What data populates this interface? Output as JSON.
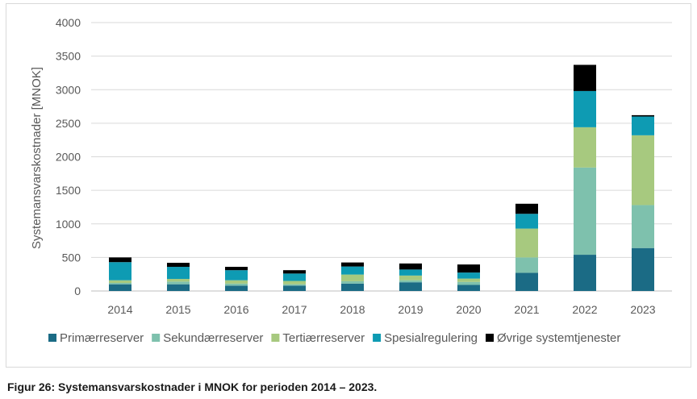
{
  "caption": "Figur 26: Systemansvarskostnader i MNOK for perioden 2014 – 2023.",
  "chart_data": {
    "type": "bar",
    "stacked": true,
    "categories": [
      "2014",
      "2015",
      "2016",
      "2017",
      "2018",
      "2019",
      "2020",
      "2021",
      "2022",
      "2023"
    ],
    "ylabel": "Systemansvarskostnader [MNOK]",
    "xlabel": "",
    "ylim": [
      0,
      4000
    ],
    "yticks": [
      0,
      500,
      1000,
      1500,
      2000,
      2500,
      3000,
      3500,
      4000
    ],
    "grid": true,
    "legend_position": "bottom",
    "series": [
      {
        "name": "Primærreserver",
        "color": "#1b6b85",
        "values": [
          100,
          100,
          80,
          80,
          110,
          130,
          90,
          270,
          540,
          640
        ]
      },
      {
        "name": "Sekundærreserver",
        "color": "#7ec1ad",
        "values": [
          20,
          40,
          30,
          20,
          35,
          30,
          45,
          230,
          1300,
          640
        ]
      },
      {
        "name": "Tertiærreserver",
        "color": "#a7c97f",
        "values": [
          40,
          40,
          50,
          50,
          100,
          70,
          50,
          430,
          600,
          1040
        ]
      },
      {
        "name": "Spesialregulering",
        "color": "#0e9bb3",
        "values": [
          270,
          180,
          150,
          110,
          120,
          90,
          90,
          220,
          540,
          280
        ]
      },
      {
        "name": "Øvrige systemtjenester",
        "color": "#000000",
        "values": [
          70,
          60,
          50,
          50,
          60,
          90,
          120,
          150,
          390,
          20
        ]
      }
    ]
  }
}
